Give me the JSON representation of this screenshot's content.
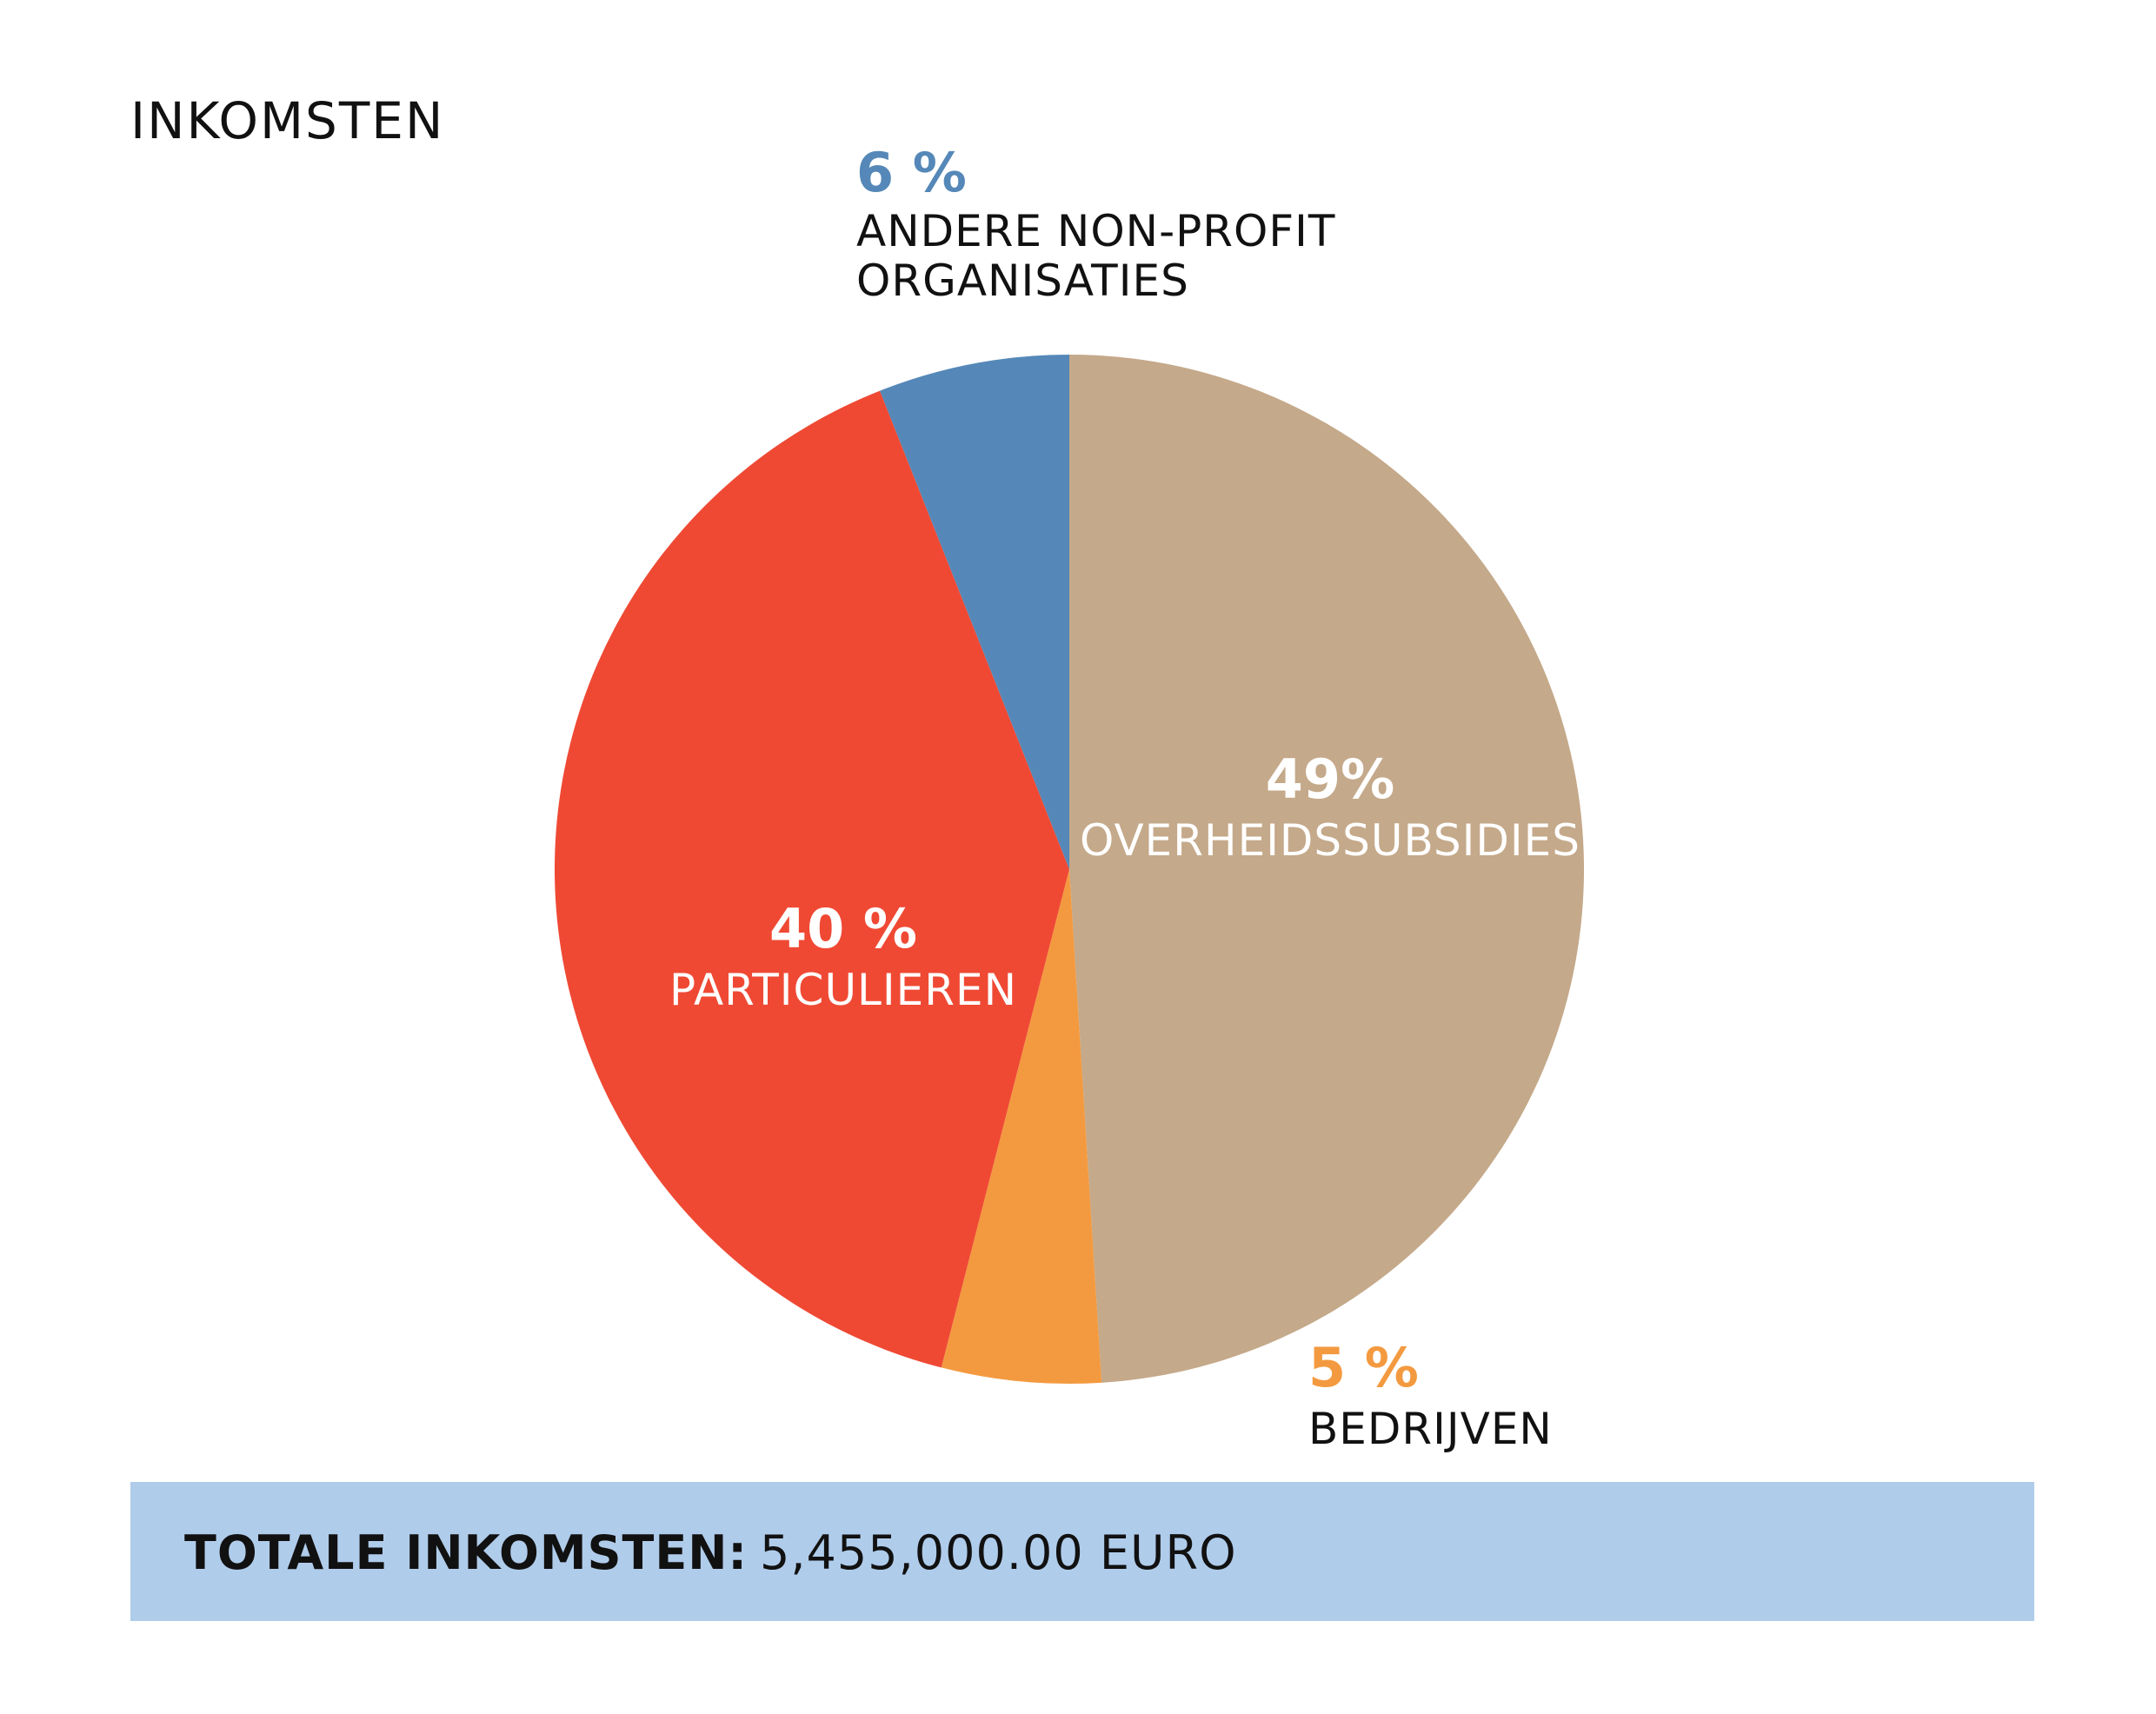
{
  "chart_data": {
    "type": "pie",
    "title": "INKOMSTEN",
    "slices": [
      {
        "label": "OVERHEIDSSUBSIDIES",
        "value": 49,
        "value_label": "49%",
        "color": "#c4a98a"
      },
      {
        "label": "BEDRIJVEN",
        "value": 5,
        "value_label": "5 %",
        "color": "#f39a40"
      },
      {
        "label": "PARTICULIEREN",
        "value": 40,
        "value_label": "40 %",
        "color": "#ef4934"
      },
      {
        "label_lines": [
          "ANDERE NON-PROFIT",
          "ORGANISATIES"
        ],
        "value": 6,
        "value_label": "6 %",
        "color": "#5588b8"
      }
    ]
  },
  "total": {
    "label": "TOTALE INKOMSTEN:",
    "value": "5,455,000.00 EURO"
  },
  "colors": {
    "total_bar_background": "#b0cceb"
  }
}
